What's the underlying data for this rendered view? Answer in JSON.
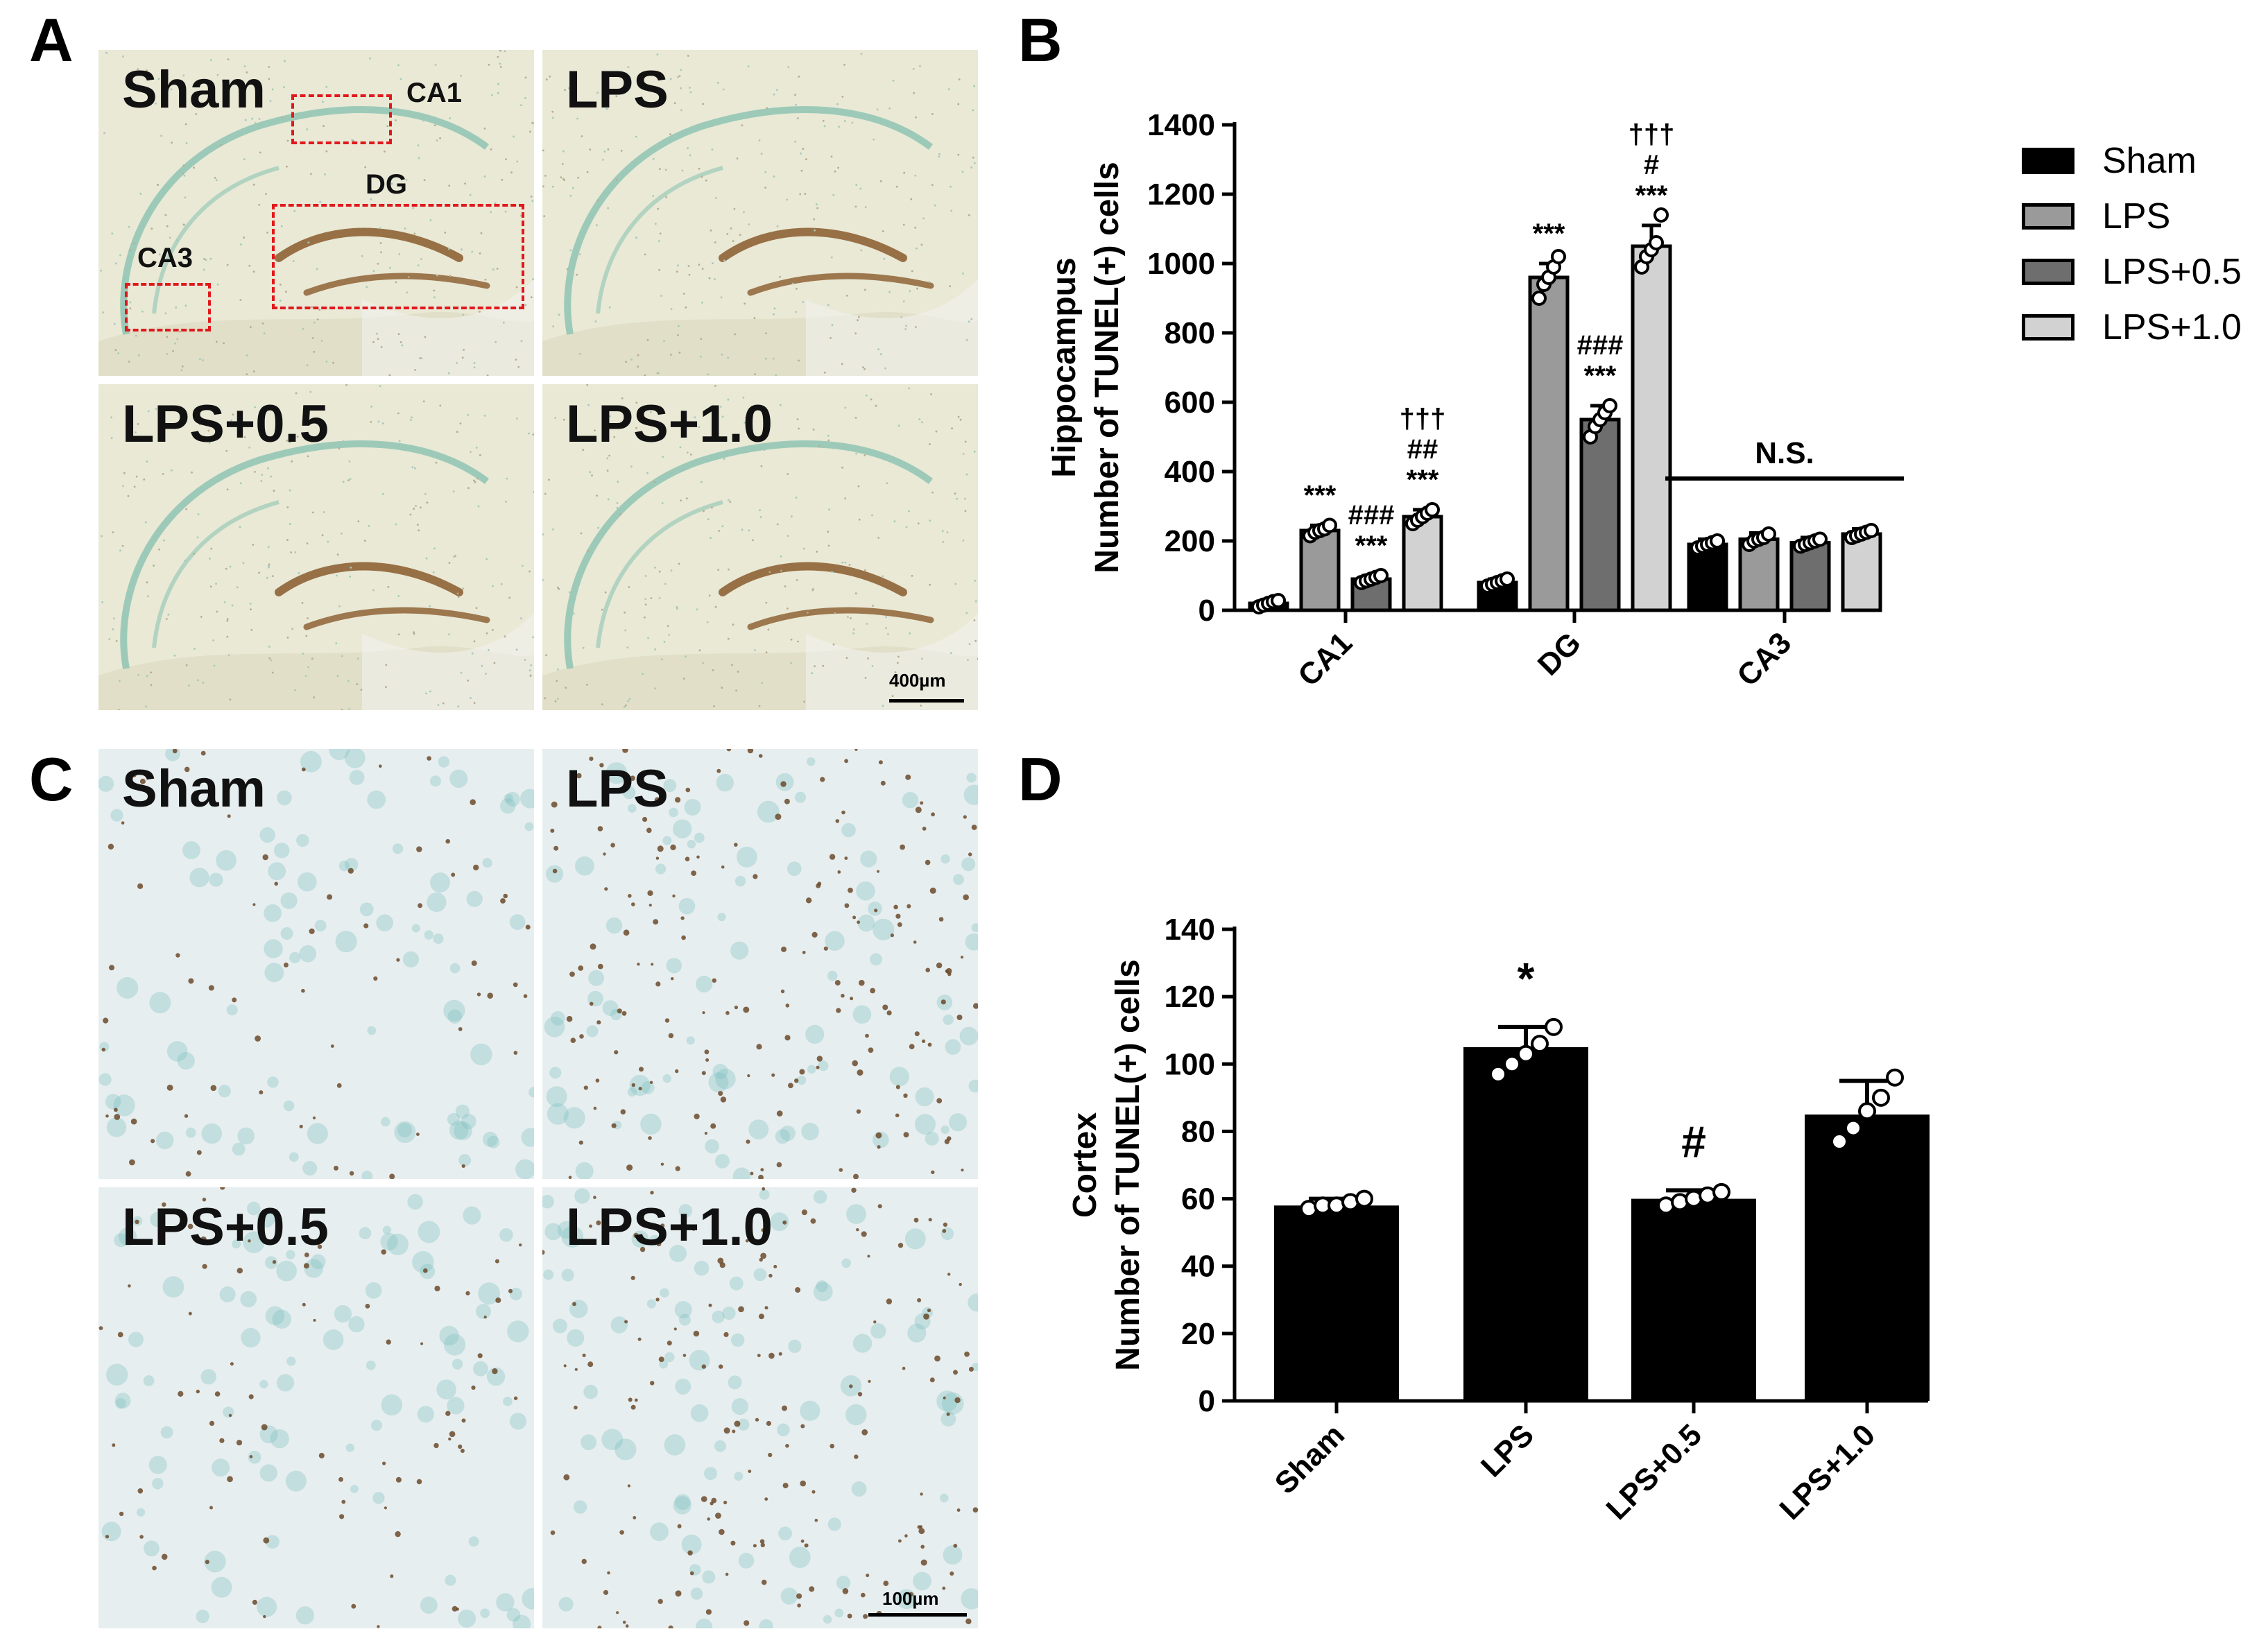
{
  "figure": {
    "panel_letters": {
      "a": "A",
      "b": "B",
      "c": "C",
      "d": "D"
    },
    "panel_a": {
      "images": [
        {
          "label": "Sham"
        },
        {
          "label": "LPS"
        },
        {
          "label": "LPS+0.5"
        },
        {
          "label": "LPS+1.0"
        }
      ],
      "region_labels": {
        "ca1": "CA1",
        "dg": "DG",
        "ca3": "CA3"
      },
      "scale_bar": "400µm",
      "colors": {
        "tissue": "#e9e9d6",
        "ventricle": "#f2f2ee",
        "cell_layer": "#8fc4b3",
        "dg_stain": "#8a5a2b",
        "roi": "#e0181c"
      }
    },
    "panel_c": {
      "images": [
        {
          "label": "Sham"
        },
        {
          "label": "LPS"
        },
        {
          "label": "LPS+0.5"
        },
        {
          "label": "LPS+1.0"
        }
      ],
      "scale_bar": "100µm",
      "colors": {
        "background": "#e7eef0",
        "nucleus_brown": "#6b4a2a",
        "nucleus_teal": "#7fc1c0"
      }
    }
  },
  "chart_data": [
    {
      "type": "bar",
      "panel": "B",
      "ylabel": [
        "Hippocampus",
        "Number of TUNEL(+) cells"
      ],
      "categories": [
        "CA1",
        "DG",
        "CA3"
      ],
      "ylim": [
        0,
        1400
      ],
      "yticks": [
        0,
        200,
        400,
        600,
        800,
        1000,
        1200,
        1400
      ],
      "series": [
        {
          "name": "Sham",
          "color": "#000000",
          "values": [
            20,
            80,
            190
          ],
          "errors": [
            8,
            10,
            15
          ],
          "points": [
            [
              10,
              15,
              20,
              25,
              28
            ],
            [
              70,
              75,
              80,
              85,
              90
            ],
            [
              180,
              185,
              190,
              195,
              200
            ]
          ]
        },
        {
          "name": "LPS",
          "color": "#9a9a9a",
          "values": [
            230,
            960,
            205
          ],
          "errors": [
            15,
            40,
            18
          ],
          "points": [
            [
              215,
              225,
              230,
              235,
              245
            ],
            [
              900,
              940,
              960,
              990,
              1020
            ],
            [
              190,
              200,
              205,
              210,
              220
            ]
          ]
        },
        {
          "name": "LPS+0.5",
          "color": "#6e6e6e",
          "values": [
            90,
            550,
            195
          ],
          "errors": [
            10,
            40,
            15
          ],
          "points": [
            [
              80,
              85,
              90,
              95,
              100
            ],
            [
              500,
              530,
              550,
              570,
              590
            ],
            [
              185,
              190,
              195,
              200,
              205
            ]
          ]
        },
        {
          "name": "LPS+1.0",
          "color": "#d2d2d2",
          "values": [
            270,
            1050,
            220
          ],
          "errors": [
            20,
            60,
            15
          ],
          "points": [
            [
              250,
              260,
              270,
              280,
              290
            ],
            [
              990,
              1020,
              1040,
              1060,
              1140
            ],
            [
              210,
              215,
              220,
              225,
              230
            ]
          ]
        }
      ],
      "annotations": [
        {
          "group": 0,
          "series": 1,
          "lines": [
            "***"
          ]
        },
        {
          "group": 0,
          "series": 2,
          "lines": [
            "###",
            "***"
          ]
        },
        {
          "group": 0,
          "series": 3,
          "lines": [
            "†††",
            "##",
            "***"
          ]
        },
        {
          "group": 1,
          "series": 1,
          "lines": [
            "***"
          ]
        },
        {
          "group": 1,
          "series": 2,
          "lines": [
            "###",
            "***"
          ]
        },
        {
          "group": 1,
          "series": 3,
          "lines": [
            "†††",
            "#",
            "***"
          ]
        }
      ],
      "ns_label": {
        "group": 2,
        "text": "N.S."
      },
      "legend_position": "top-right"
    },
    {
      "type": "bar",
      "panel": "D",
      "ylabel": [
        "Cortex",
        "Number of TUNEL(+) cells"
      ],
      "categories": [
        "Sham",
        "LPS",
        "LPS+0.5",
        "LPS+1.0"
      ],
      "values": [
        58,
        105,
        60,
        85
      ],
      "errors": [
        2,
        6,
        2.5,
        10
      ],
      "points": [
        [
          57,
          58,
          58,
          59,
          60
        ],
        [
          97,
          100,
          103,
          106,
          111
        ],
        [
          58,
          59,
          60,
          61,
          62
        ],
        [
          77,
          81,
          86,
          90,
          96
        ]
      ],
      "color": "#000000",
      "ylim": [
        0,
        140
      ],
      "yticks": [
        0,
        20,
        40,
        60,
        80,
        100,
        120,
        140
      ],
      "annotations": [
        {
          "index": 1,
          "text": "*"
        },
        {
          "index": 2,
          "text": "#"
        }
      ]
    }
  ]
}
